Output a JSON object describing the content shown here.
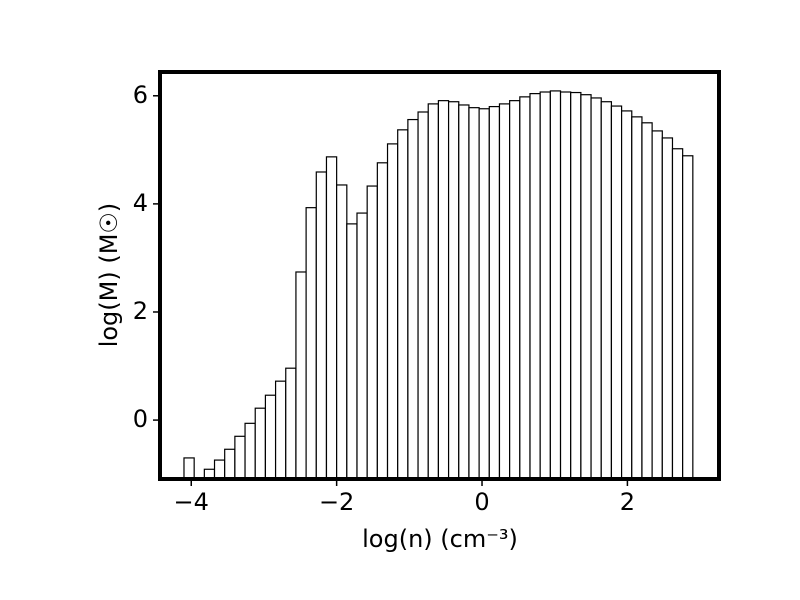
{
  "chart_data": {
    "type": "histogram",
    "xlabel": "log(n) (cm⁻³)",
    "ylabel": "log(M) (M☉)",
    "bins": [
      -4.1,
      -3.96,
      -3.82,
      -3.68,
      -3.54,
      -3.4,
      -3.26,
      -3.12,
      -2.98,
      -2.84,
      -2.7,
      -2.56,
      -2.42,
      -2.28,
      -2.14,
      -2.0,
      -1.86,
      -1.72,
      -1.58,
      -1.44,
      -1.3,
      -1.16,
      -1.02,
      -0.88,
      -0.74,
      -0.6,
      -0.46,
      -0.32,
      -0.18,
      -0.04,
      0.1,
      0.24,
      0.38,
      0.52,
      0.66,
      0.8,
      0.94,
      1.08,
      1.22,
      1.36,
      1.5,
      1.64,
      1.78,
      1.92,
      2.06,
      2.2,
      2.34,
      2.48,
      2.62,
      2.76,
      2.9
    ],
    "counts": [
      -0.7,
      null,
      -0.91,
      -0.74,
      -0.54,
      -0.3,
      -0.06,
      0.22,
      0.46,
      0.72,
      0.96,
      2.74,
      3.93,
      4.59,
      4.87,
      4.35,
      3.63,
      3.83,
      4.33,
      4.76,
      5.11,
      5.37,
      5.56,
      5.7,
      5.85,
      5.91,
      5.89,
      5.83,
      5.78,
      5.76,
      5.8,
      5.85,
      5.91,
      5.98,
      6.04,
      6.07,
      6.09,
      6.07,
      6.06,
      6.02,
      5.96,
      5.89,
      5.81,
      5.72,
      5.61,
      5.5,
      5.35,
      5.22,
      5.02,
      4.89
    ],
    "color": "#ffffff",
    "edgecolor": "#000000",
    "xlim": [
      -4.43,
      3.26
    ],
    "ylim": [
      -1.09,
      6.44
    ],
    "xticks": [
      {
        "value": -4,
        "label": "−4"
      },
      {
        "value": -2,
        "label": "−2"
      },
      0,
      2
    ],
    "yticks": [
      0,
      2,
      4,
      6
    ]
  }
}
